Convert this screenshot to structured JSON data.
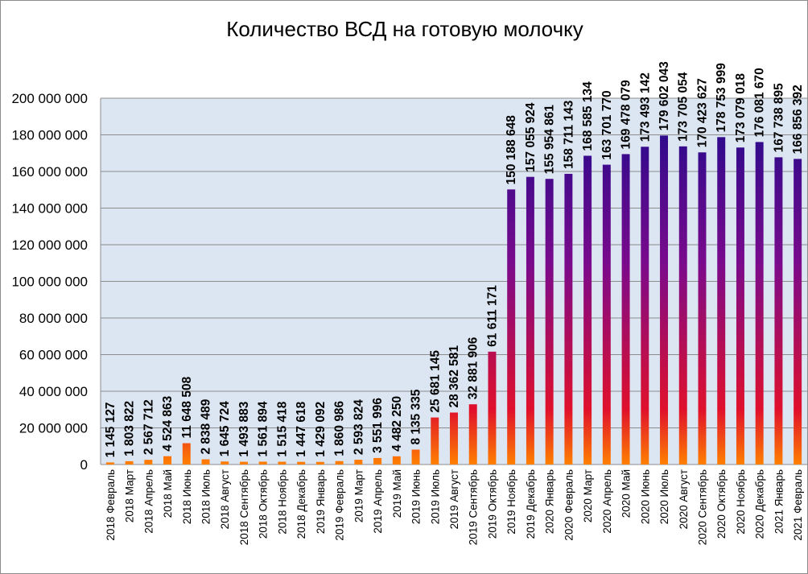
{
  "chart_data": {
    "type": "bar",
    "title": "Количество ВСД на готовую молочку",
    "xlabel": "",
    "ylabel": "",
    "ylim": [
      0,
      200000000
    ],
    "yticks": [
      0,
      20000000,
      40000000,
      60000000,
      80000000,
      100000000,
      120000000,
      140000000,
      160000000,
      180000000,
      200000000
    ],
    "ytick_labels": [
      "0",
      "20 000 000",
      "40 000 000",
      "60 000 000",
      "80 000 000",
      "100 000 000",
      "120 000 000",
      "140 000 000",
      "160 000 000",
      "180 000 000",
      "200 000 000"
    ],
    "grid": true,
    "legend": "none",
    "categories": [
      "2018 Февраль",
      "2018 Март",
      "2018 Апрель",
      "2018 Май",
      "2018 Июнь",
      "2018 Июль",
      "2018 Август",
      "2018 Сентябрь",
      "2018 Октябрь",
      "2018 Ноябрь",
      "2018 Декабрь",
      "2019 Январь",
      "2019 Февраль",
      "2019 Март",
      "2019 Апрель",
      "2019 Май",
      "2019 Июнь",
      "2019 Июль",
      "2019 Август",
      "2019 Сентябрь",
      "2019 Октябрь",
      "2019 Ноябрь",
      "2019 Декабрь",
      "2020 Январь",
      "2020 Февраль",
      "2020 Март",
      "2020 Апрель",
      "2020 Май",
      "2020 Июнь",
      "2020 Июль",
      "2020 Август",
      "2020 Сентябрь",
      "2020 Октябрь",
      "2020 Ноябрь",
      "2020 Декабрь",
      "2021 Январь",
      "2021 Февраль"
    ],
    "values": [
      1145127,
      1803822,
      2567712,
      4524863,
      11648508,
      2838489,
      1645724,
      1493883,
      1561894,
      1515418,
      1447618,
      1429092,
      1860986,
      2593824,
      3551996,
      4482250,
      8135335,
      25681145,
      28362581,
      32881906,
      61611171,
      150188648,
      157055924,
      155954861,
      158711143,
      168585134,
      163701770,
      169478079,
      173493142,
      179602043,
      173705054,
      170423627,
      178753999,
      173079018,
      176081670,
      167738895,
      166856392
    ],
    "data_labels": [
      "1 145 127",
      "1 803 822",
      "2 567 712",
      "4 524 863",
      "11 648 508",
      "2 838 489",
      "1 645 724",
      "1 493 883",
      "1 561 894",
      "1 515 418",
      "1 447 618",
      "1 429 092",
      "1 860 986",
      "2 593 824",
      "3 551 996",
      "4 482 250",
      "8 135 335",
      "25 681 145",
      "28 362 581",
      "32 881 906",
      "61 611 171",
      "150 188 648",
      "157 055 924",
      "155 954 861",
      "158 711 143",
      "168 585 134",
      "163 701 770",
      "169 478 079",
      "173 493 142",
      "179 602 043",
      "173 705 054",
      "170 423 627",
      "178 753 999",
      "173 079 018",
      "176 081 670",
      "167 738 895",
      "166 856 392"
    ],
    "colors": {
      "plot_background": "#dce6f2",
      "gridline": "#8c8c8c",
      "bar_gradient": [
        "#1a0a8c",
        "#7a0a8c",
        "#e0102c",
        "#ff8000"
      ]
    }
  }
}
